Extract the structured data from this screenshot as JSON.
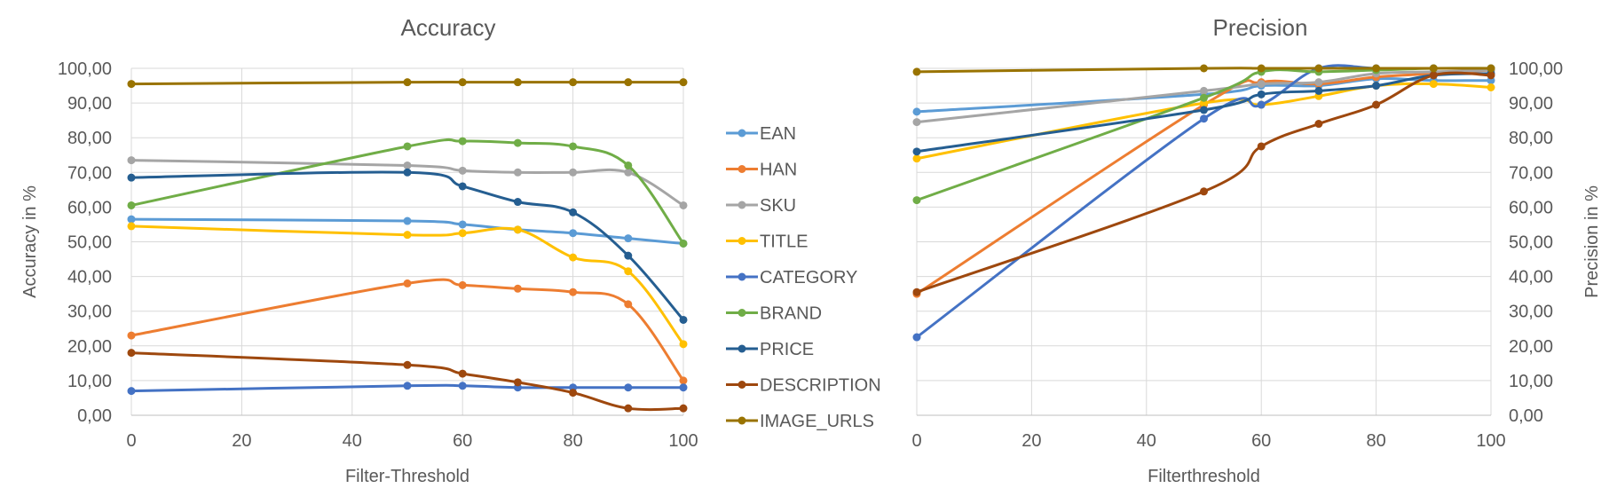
{
  "chart_data": [
    {
      "type": "line",
      "title": "Accuracy",
      "xlabel": "Filter-Threshold",
      "ylabel": "Accuracy in %",
      "x": [
        0,
        50,
        60,
        70,
        80,
        90,
        100
      ],
      "xlim": [
        0,
        100
      ],
      "ylim": [
        0,
        100
      ],
      "xticks": [
        "0",
        "20",
        "40",
        "60",
        "80",
        "100"
      ],
      "yticks": [
        "0,00",
        "10,00",
        "20,00",
        "30,00",
        "40,00",
        "50,00",
        "60,00",
        "70,00",
        "80,00",
        "90,00",
        "100,00"
      ],
      "y_axis_side": "left",
      "grid": true,
      "series": [
        {
          "name": "EAN",
          "color": "#5B9BD5",
          "values": [
            56.5,
            56.0,
            55.0,
            53.5,
            52.5,
            51.0,
            49.5
          ]
        },
        {
          "name": "HAN",
          "color": "#ED7D31",
          "values": [
            23.0,
            38.0,
            37.5,
            36.5,
            35.5,
            32.0,
            10.0
          ]
        },
        {
          "name": "SKU",
          "color": "#A5A5A5",
          "values": [
            73.5,
            72.0,
            70.5,
            70.0,
            70.0,
            70.0,
            60.5
          ]
        },
        {
          "name": "TITLE",
          "color": "#FFC000",
          "values": [
            54.5,
            52.0,
            52.5,
            53.5,
            45.5,
            41.5,
            20.5
          ]
        },
        {
          "name": "CATEGORY",
          "color": "#4472C4",
          "values": [
            7.0,
            8.5,
            8.5,
            8.0,
            8.0,
            8.0,
            8.0
          ]
        },
        {
          "name": "BRAND",
          "color": "#70AD47",
          "values": [
            60.5,
            77.5,
            79.0,
            78.5,
            77.5,
            72.0,
            49.5
          ]
        },
        {
          "name": "PRICE",
          "color": "#255E91",
          "values": [
            68.5,
            70.0,
            66.0,
            61.5,
            58.5,
            46.0,
            27.5
          ]
        },
        {
          "name": "DESCRIPTION",
          "color": "#9E480E",
          "values": [
            18.0,
            14.5,
            12.0,
            9.5,
            6.5,
            2.0,
            2.0
          ]
        },
        {
          "name": "IMAGE_URLS",
          "color": "#997300",
          "values": [
            95.5,
            96.0,
            96.0,
            96.0,
            96.0,
            96.0,
            96.0
          ]
        }
      ]
    },
    {
      "type": "line",
      "title": "Precision",
      "xlabel": "Filterthreshold",
      "ylabel": "Precision in %",
      "x": [
        0,
        50,
        60,
        70,
        80,
        90,
        100
      ],
      "xlim": [
        0,
        100
      ],
      "ylim": [
        0,
        100
      ],
      "xticks": [
        "0",
        "20",
        "40",
        "60",
        "80",
        "100"
      ],
      "yticks": [
        "0,00",
        "10,00",
        "20,00",
        "30,00",
        "40,00",
        "50,00",
        "60,00",
        "70,00",
        "80,00",
        "90,00",
        "100,00"
      ],
      "y_axis_side": "right",
      "grid": true,
      "series": [
        {
          "name": "EAN",
          "color": "#5B9BD5",
          "values": [
            87.5,
            92.5,
            95.0,
            95.0,
            97.0,
            96.5,
            96.5
          ]
        },
        {
          "name": "HAN",
          "color": "#ED7D31",
          "values": [
            35.0,
            89.5,
            96.0,
            95.5,
            97.5,
            98.5,
            99.5
          ]
        },
        {
          "name": "SKU",
          "color": "#A5A5A5",
          "values": [
            84.5,
            93.5,
            95.5,
            96.0,
            98.5,
            99.0,
            99.5
          ]
        },
        {
          "name": "TITLE",
          "color": "#FFC000",
          "values": [
            74.0,
            90.0,
            89.5,
            92.0,
            95.0,
            95.5,
            94.5
          ]
        },
        {
          "name": "CATEGORY",
          "color": "#4472C4",
          "values": [
            22.5,
            85.5,
            89.5,
            100.0,
            100.0,
            100.0,
            100.0
          ]
        },
        {
          "name": "BRAND",
          "color": "#70AD47",
          "values": [
            62.0,
            91.5,
            99.0,
            99.0,
            99.5,
            100.0,
            100.0
          ]
        },
        {
          "name": "PRICE",
          "color": "#255E91",
          "values": [
            76.0,
            88.0,
            92.5,
            93.5,
            95.0,
            98.0,
            98.5
          ]
        },
        {
          "name": "DESCRIPTION",
          "color": "#9E480E",
          "values": [
            35.5,
            64.5,
            77.5,
            84.0,
            89.5,
            98.0,
            98.0
          ]
        },
        {
          "name": "IMAGE_URLS",
          "color": "#997300",
          "values": [
            99.0,
            100.0,
            100.0,
            100.0,
            100.0,
            100.0,
            100.0
          ]
        }
      ]
    }
  ]
}
